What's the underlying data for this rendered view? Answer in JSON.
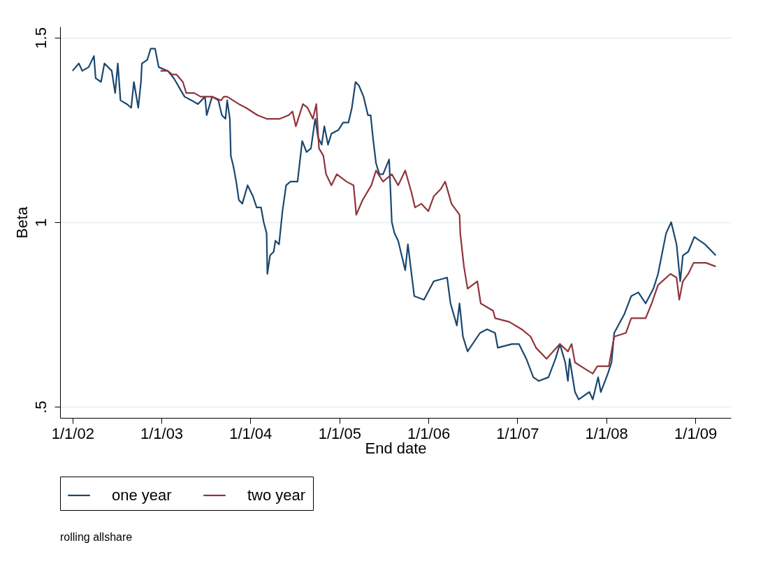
{
  "chart_data": {
    "type": "line",
    "xlabel": "End date",
    "ylabel": "Beta",
    "annotations": [
      "rolling allshare"
    ],
    "xlim": [
      "2001-11-11",
      "2009-05-27"
    ],
    "ylim": [
      0.47,
      1.53
    ],
    "xticks": [
      {
        "value": "2002-01-01",
        "label": "1/1/02"
      },
      {
        "value": "2003-01-01",
        "label": "1/1/03"
      },
      {
        "value": "2004-01-01",
        "label": "1/1/04"
      },
      {
        "value": "2005-01-01",
        "label": "1/1/05"
      },
      {
        "value": "2006-01-01",
        "label": "1/1/06"
      },
      {
        "value": "2007-01-01",
        "label": "1/1/07"
      },
      {
        "value": "2008-01-01",
        "label": "1/1/08"
      },
      {
        "value": "2009-01-01",
        "label": "1/1/09"
      }
    ],
    "yticks": [
      {
        "value": 0.5,
        "label": ".5"
      },
      1,
      1.5
    ],
    "grid": "y",
    "legend": "bottom",
    "series": [
      {
        "name": "one year",
        "color": "#1a476f",
        "x": [
          "2002-01-01",
          "2002-01-27",
          "2002-02-10",
          "2002-03-08",
          "2002-03-30",
          "2002-04-06",
          "2002-04-28",
          "2002-05-12",
          "2002-06-11",
          "2002-06-25",
          "2002-07-06",
          "2002-07-17",
          "2002-08-12",
          "2002-08-30",
          "2002-09-10",
          "2002-09-28",
          "2002-10-09",
          "2002-10-13",
          "2002-11-04",
          "2002-11-18",
          "2002-12-06",
          "2002-12-21",
          "2003-01-27",
          "2003-02-21",
          "2003-04-06",
          "2003-05-05",
          "2003-05-31",
          "2003-06-29",
          "2003-07-06",
          "2003-07-28",
          "2003-08-23",
          "2003-09-06",
          "2003-09-21",
          "2003-09-28",
          "2003-10-09",
          "2003-10-13",
          "2003-10-24",
          "2003-11-04",
          "2003-11-15",
          "2003-11-29",
          "2003-12-21",
          "2004-01-12",
          "2004-01-27",
          "2004-02-14",
          "2004-02-25",
          "2004-03-08",
          "2004-03-11",
          "2004-03-22",
          "2004-04-06",
          "2004-04-13",
          "2004-04-28",
          "2004-05-12",
          "2004-05-27",
          "2004-06-14",
          "2004-07-13",
          "2004-08-01",
          "2004-08-19",
          "2004-09-06",
          "2004-09-21",
          "2004-09-24",
          "2004-10-05",
          "2004-10-20",
          "2004-10-31",
          "2004-11-15",
          "2004-11-29",
          "2004-12-28",
          "2005-01-16",
          "2005-02-07",
          "2005-02-21",
          "2005-03-08",
          "2005-03-22",
          "2005-04-10",
          "2005-04-28",
          "2005-05-09",
          "2005-05-20",
          "2005-05-31",
          "2005-06-14",
          "2005-06-29",
          "2005-07-24",
          "2005-08-04",
          "2005-08-15",
          "2005-08-30",
          "2005-09-28",
          "2005-10-09",
          "2005-11-04",
          "2005-12-14",
          "2006-01-23",
          "2006-03-19",
          "2006-04-02",
          "2006-04-28",
          "2006-05-09",
          "2006-05-23",
          "2006-06-11",
          "2006-08-01",
          "2006-08-30",
          "2006-10-02",
          "2006-10-13",
          "2006-12-10",
          "2007-01-08",
          "2007-02-07",
          "2007-03-08",
          "2007-03-30",
          "2007-05-09",
          "2007-06-07",
          "2007-06-25",
          "2007-07-17",
          "2007-07-28",
          "2007-08-04",
          "2007-08-26",
          "2007-09-10",
          "2007-10-24",
          "2007-11-07",
          "2007-11-29",
          "2007-12-10",
          "2008-01-08",
          "2008-01-23",
          "2008-02-03",
          "2008-03-15",
          "2008-04-13",
          "2008-05-12",
          "2008-06-11",
          "2008-07-13",
          "2008-08-01",
          "2008-09-03",
          "2008-09-24",
          "2008-10-16",
          "2008-10-31",
          "2008-11-11",
          "2008-12-03",
          "2008-12-28",
          "2009-02-10",
          "2009-03-26"
        ],
        "values": [
          1.41,
          1.43,
          1.41,
          1.42,
          1.45,
          1.39,
          1.38,
          1.43,
          1.41,
          1.35,
          1.43,
          1.33,
          1.32,
          1.31,
          1.38,
          1.31,
          1.38,
          1.43,
          1.44,
          1.47,
          1.47,
          1.42,
          1.41,
          1.39,
          1.34,
          1.33,
          1.32,
          1.34,
          1.29,
          1.34,
          1.33,
          1.29,
          1.28,
          1.33,
          1.28,
          1.18,
          1.15,
          1.11,
          1.06,
          1.05,
          1.1,
          1.07,
          1.04,
          1.04,
          1.0,
          0.97,
          0.86,
          0.91,
          0.92,
          0.95,
          0.94,
          1.03,
          1.1,
          1.11,
          1.11,
          1.22,
          1.19,
          1.2,
          1.27,
          1.28,
          1.23,
          1.21,
          1.26,
          1.21,
          1.24,
          1.25,
          1.27,
          1.27,
          1.31,
          1.38,
          1.37,
          1.34,
          1.29,
          1.29,
          1.22,
          1.16,
          1.13,
          1.13,
          1.17,
          1.0,
          0.97,
          0.95,
          0.87,
          0.94,
          0.8,
          0.79,
          0.84,
          0.85,
          0.78,
          0.72,
          0.78,
          0.69,
          0.65,
          0.7,
          0.71,
          0.7,
          0.66,
          0.67,
          0.67,
          0.63,
          0.58,
          0.57,
          0.58,
          0.63,
          0.67,
          0.62,
          0.57,
          0.63,
          0.54,
          0.52,
          0.54,
          0.52,
          0.58,
          0.54,
          0.59,
          0.62,
          0.7,
          0.75,
          0.8,
          0.81,
          0.78,
          0.82,
          0.86,
          0.97,
          1.0,
          0.94,
          0.84,
          0.91,
          0.92,
          0.96,
          0.94,
          0.91
        ]
      },
      {
        "name": "two year",
        "color": "#90353b",
        "x": [
          "2002-12-28",
          "2003-01-27",
          "2003-02-14",
          "2003-03-04",
          "2003-03-30",
          "2003-04-13",
          "2003-04-28",
          "2003-05-16",
          "2003-06-11",
          "2003-07-28",
          "2003-09-03",
          "2003-09-14",
          "2003-09-28",
          "2003-11-15",
          "2003-12-14",
          "2004-01-30",
          "2004-03-08",
          "2004-05-01",
          "2004-06-07",
          "2004-06-22",
          "2004-07-06",
          "2004-08-04",
          "2004-08-23",
          "2004-09-14",
          "2004-09-28",
          "2004-10-09",
          "2004-10-27",
          "2004-11-07",
          "2004-11-29",
          "2004-12-21",
          "2005-01-30",
          "2005-02-28",
          "2005-03-11",
          "2005-04-06",
          "2005-05-12",
          "2005-05-31",
          "2005-06-29",
          "2005-08-04",
          "2005-08-30",
          "2005-09-28",
          "2005-10-24",
          "2005-11-07",
          "2005-12-03",
          "2006-01-01",
          "2006-01-23",
          "2006-02-21",
          "2006-03-11",
          "2006-04-06",
          "2006-05-09",
          "2006-05-12",
          "2006-05-27",
          "2006-06-11",
          "2006-07-21",
          "2006-08-04",
          "2006-09-24",
          "2006-10-02",
          "2006-11-29",
          "2007-01-19",
          "2007-02-25",
          "2007-03-19",
          "2007-05-01",
          "2007-06-25",
          "2007-07-28",
          "2007-08-12",
          "2007-08-26",
          "2007-10-13",
          "2007-11-07",
          "2007-11-26",
          "2008-01-12",
          "2008-02-03",
          "2008-03-22",
          "2008-04-13",
          "2008-06-11",
          "2008-07-06",
          "2008-08-01",
          "2008-09-21",
          "2008-10-16",
          "2008-10-27",
          "2008-11-11",
          "2008-12-03",
          "2008-12-25",
          "2009-01-27",
          "2009-02-14",
          "2009-03-26"
        ],
        "values": [
          1.41,
          1.41,
          1.4,
          1.4,
          1.38,
          1.35,
          1.35,
          1.35,
          1.34,
          1.34,
          1.33,
          1.34,
          1.34,
          1.32,
          1.31,
          1.29,
          1.28,
          1.28,
          1.29,
          1.3,
          1.26,
          1.32,
          1.31,
          1.28,
          1.32,
          1.2,
          1.18,
          1.13,
          1.1,
          1.13,
          1.11,
          1.1,
          1.02,
          1.06,
          1.1,
          1.14,
          1.11,
          1.13,
          1.1,
          1.14,
          1.08,
          1.04,
          1.05,
          1.03,
          1.07,
          1.09,
          1.11,
          1.05,
          1.02,
          0.97,
          0.88,
          0.82,
          0.84,
          0.78,
          0.76,
          0.74,
          0.73,
          0.71,
          0.69,
          0.66,
          0.63,
          0.67,
          0.65,
          0.67,
          0.62,
          0.6,
          0.59,
          0.61,
          0.61,
          0.69,
          0.7,
          0.74,
          0.74,
          0.78,
          0.83,
          0.86,
          0.85,
          0.79,
          0.84,
          0.86,
          0.89,
          0.89,
          0.89,
          0.88
        ]
      }
    ]
  }
}
